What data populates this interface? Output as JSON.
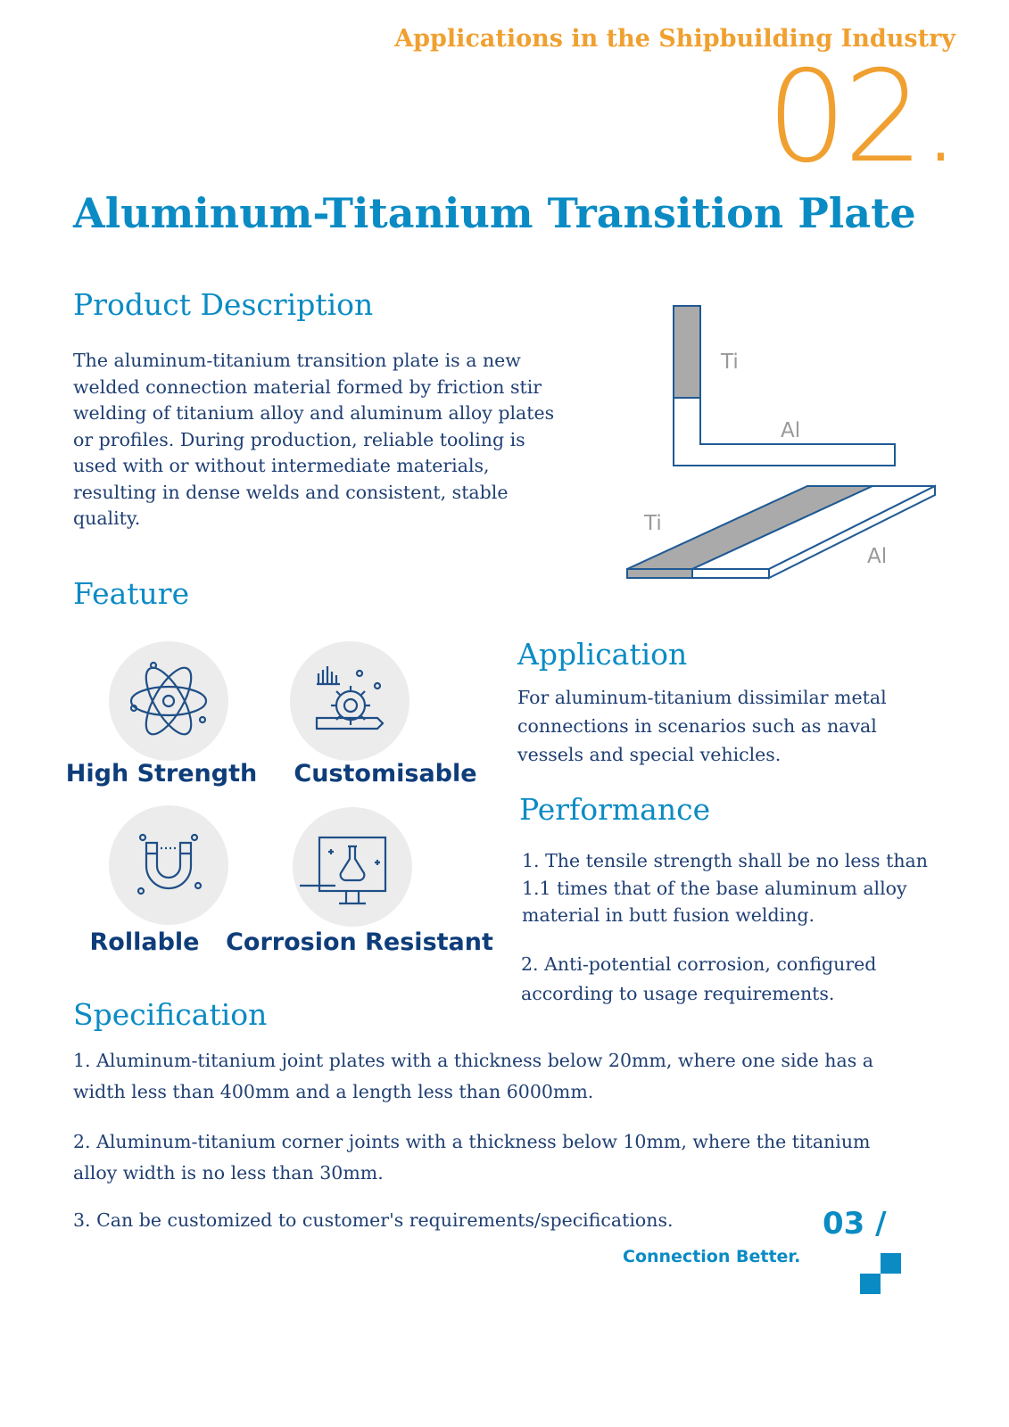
{
  "header": {
    "section_title": "Applications in the Shipbuilding Industry",
    "section_number": "02."
  },
  "title": "Aluminum-Titanium Transition Plate",
  "description": {
    "heading": "Product  Description",
    "text": "The aluminum-titanium transition plate is a new welded connection material formed by friction stir welding of titanium alloy and aluminum alloy plates or profiles. During production, reliable tooling is used with or without intermediate materials, resulting in dense welds and consistent, stable quality."
  },
  "diagram": {
    "labels": {
      "ti_top": "Ti",
      "al_top": "Al",
      "ti_bottom": "Ti",
      "al_bottom": "Al"
    }
  },
  "feature": {
    "heading": "Feature",
    "items": [
      {
        "label": "High Strength",
        "icon": "atom-icon"
      },
      {
        "label": "Customisable",
        "icon": "gear-chart-icon"
      },
      {
        "label": "Rollable",
        "icon": "magnet-icon"
      },
      {
        "label": "Corrosion Resistant",
        "icon": "flask-monitor-icon"
      }
    ]
  },
  "application": {
    "heading": "Application",
    "text": "For aluminum-titanium dissimilar metal connections in scenarios such as naval vessels and special vehicles."
  },
  "performance": {
    "heading": "Performance",
    "items": [
      "1. The tensile strength shall be no less than 1.1 times that of  the base aluminum alloy material in butt  fusion welding.",
      "2. Anti-potential corrosion, configured according to usage requirements."
    ]
  },
  "specification": {
    "heading": "Specification",
    "items": [
      "1. Aluminum-titanium joint plates with a thickness below 20mm,   where one side  has  a width less than 400mm and a length less than 6000mm.",
      "2. Aluminum-titanium corner joints with a thickness below 10mm, where the  titanium alloy width is no less than 30mm.",
      "3.  Can  be  customized  to  customer's  requirements/specifications."
    ]
  },
  "footer": {
    "page": "03 /",
    "slogan": "Connection Better."
  },
  "colors": {
    "accent": "#0b8bc4",
    "orange": "#f0a030",
    "text": "#1f3f73"
  }
}
